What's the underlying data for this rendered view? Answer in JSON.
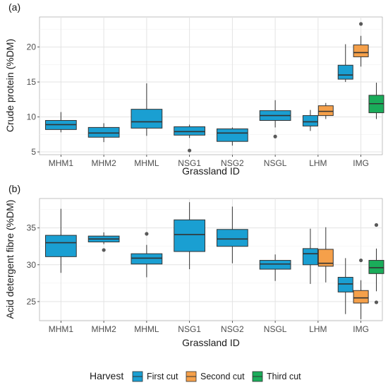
{
  "colors": {
    "first_cut": "#1a9fd2",
    "second_cut": "#f5a04a",
    "third_cut": "#1aac5a",
    "grid": "#e3e3e3",
    "outlier": "#595959"
  },
  "legend": {
    "title": "Harvest",
    "items": [
      {
        "label": "First cut",
        "color_key": "first_cut"
      },
      {
        "label": "Second cut",
        "color_key": "second_cut"
      },
      {
        "label": "Third cut",
        "color_key": "third_cut"
      }
    ],
    "placement": "bottom"
  },
  "chart_data": [
    {
      "panel": "(a)",
      "type": "box",
      "xlabel": "Grassland ID",
      "ylabel": "Crude protein (%DM)",
      "categories": [
        "MHM1",
        "MHM2",
        "MHML",
        "NSG1",
        "NSG2",
        "NSGL",
        "LHM",
        "IMG"
      ],
      "ylim": [
        4.6,
        24.3
      ],
      "yticks": [
        5,
        10,
        15,
        20
      ],
      "grid": true,
      "boxes": [
        {
          "category": "MHM1",
          "series": "first_cut",
          "min": 7.8,
          "q1": 8.2,
          "median": 8.9,
          "q3": 9.5,
          "max": 10.7,
          "outliers": []
        },
        {
          "category": "MHM2",
          "series": "first_cut",
          "min": 6.4,
          "q1": 7.1,
          "median": 7.7,
          "q3": 8.5,
          "max": 9.1,
          "outliers": []
        },
        {
          "category": "MHML",
          "series": "first_cut",
          "min": 7.3,
          "q1": 8.4,
          "median": 9.3,
          "q3": 11.1,
          "max": 14.8,
          "outliers": []
        },
        {
          "category": "NSG1",
          "series": "first_cut",
          "min": 7.0,
          "q1": 7.4,
          "median": 7.9,
          "q3": 8.6,
          "max": 8.9,
          "outliers": [
            5.2
          ]
        },
        {
          "category": "NSG2",
          "series": "first_cut",
          "min": 5.9,
          "q1": 6.5,
          "median": 7.7,
          "q3": 8.3,
          "max": 8.5,
          "outliers": []
        },
        {
          "category": "NSGL",
          "series": "first_cut",
          "min": 8.5,
          "q1": 9.5,
          "median": 10.2,
          "q3": 10.9,
          "max": 12.4,
          "outliers": [
            7.2
          ]
        },
        {
          "category": "LHM",
          "series": "first_cut",
          "min": 8.0,
          "q1": 8.7,
          "median": 9.3,
          "q3": 10.2,
          "max": 11.0,
          "outliers": []
        },
        {
          "category": "LHM",
          "series": "second_cut",
          "min": 9.7,
          "q1": 10.2,
          "median": 10.8,
          "q3": 11.6,
          "max": 12.0,
          "outliers": []
        },
        {
          "category": "IMG",
          "series": "first_cut",
          "min": 15.0,
          "q1": 15.4,
          "median": 16.0,
          "q3": 17.4,
          "max": 20.4,
          "outliers": []
        },
        {
          "category": "IMG",
          "series": "second_cut",
          "min": 17.2,
          "q1": 18.6,
          "median": 19.2,
          "q3": 20.3,
          "max": 21.6,
          "outliers": [
            23.3
          ]
        },
        {
          "category": "IMG",
          "series": "third_cut",
          "min": 9.7,
          "q1": 10.6,
          "median": 11.9,
          "q3": 13.1,
          "max": 14.9,
          "outliers": []
        }
      ]
    },
    {
      "panel": "(b)",
      "type": "box",
      "xlabel": "Grassland ID",
      "ylabel": "Acid detergent fibre (%DM)",
      "categories": [
        "MHM1",
        "MHM2",
        "MHML",
        "NSG1",
        "NSG2",
        "NSGL",
        "LHM",
        "IMG"
      ],
      "ylim": [
        22.4,
        39.0
      ],
      "yticks": [
        25,
        30,
        35
      ],
      "grid": true,
      "boxes": [
        {
          "category": "MHM1",
          "series": "first_cut",
          "min": 28.9,
          "q1": 31.1,
          "median": 33.0,
          "q3": 34.0,
          "max": 37.6,
          "outliers": []
        },
        {
          "category": "MHM2",
          "series": "first_cut",
          "min": 32.8,
          "q1": 33.1,
          "median": 33.5,
          "q3": 33.9,
          "max": 34.4,
          "outliers": [
            32.0
          ]
        },
        {
          "category": "MHML",
          "series": "first_cut",
          "min": 28.3,
          "q1": 30.1,
          "median": 30.9,
          "q3": 31.5,
          "max": 32.7,
          "outliers": [
            34.2
          ]
        },
        {
          "category": "NSG1",
          "series": "first_cut",
          "min": 29.4,
          "q1": 31.8,
          "median": 34.1,
          "q3": 36.1,
          "max": 38.5,
          "outliers": []
        },
        {
          "category": "NSG2",
          "series": "first_cut",
          "min": 30.2,
          "q1": 32.5,
          "median": 33.5,
          "q3": 34.8,
          "max": 37.9,
          "outliers": []
        },
        {
          "category": "NSGL",
          "series": "first_cut",
          "min": 27.8,
          "q1": 29.4,
          "median": 30.1,
          "q3": 30.6,
          "max": 31.4,
          "outliers": []
        },
        {
          "category": "LHM",
          "series": "first_cut",
          "min": 27.4,
          "q1": 30.0,
          "median": 31.5,
          "q3": 32.2,
          "max": 34.9,
          "outliers": []
        },
        {
          "category": "LHM",
          "series": "second_cut",
          "min": 27.6,
          "q1": 29.8,
          "median": 30.2,
          "q3": 32.1,
          "max": 35.1,
          "outliers": []
        },
        {
          "category": "IMG",
          "series": "first_cut",
          "min": 23.3,
          "q1": 26.3,
          "median": 27.4,
          "q3": 28.3,
          "max": 30.9,
          "outliers": []
        },
        {
          "category": "IMG",
          "series": "second_cut",
          "min": 22.6,
          "q1": 24.8,
          "median": 25.5,
          "q3": 26.5,
          "max": 27.9,
          "outliers": [
            30.6
          ]
        },
        {
          "category": "IMG",
          "series": "third_cut",
          "min": 26.4,
          "q1": 28.8,
          "median": 29.6,
          "q3": 30.6,
          "max": 32.2,
          "outliers": [
            35.4,
            24.9
          ]
        }
      ]
    }
  ]
}
